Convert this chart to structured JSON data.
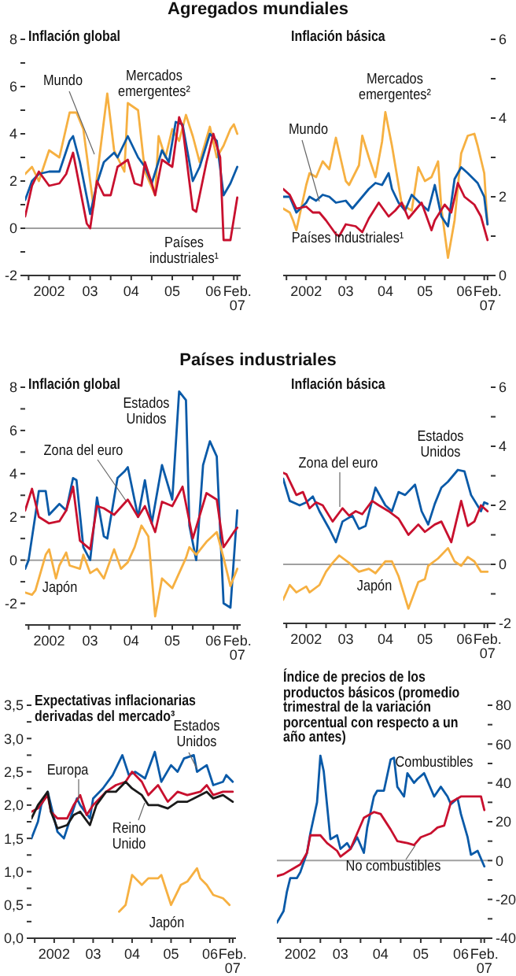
{
  "chart_data": [
    {
      "type": "line",
      "title": "Inflación global",
      "annotations": [
        "Agregados mundiales"
      ],
      "xlim": [
        "2001-12",
        "2007-03"
      ],
      "xticks": [
        {
          "value": "2002-01",
          "label": null
        },
        {
          "value": "2002-07",
          "label": "2002"
        },
        {
          "value": "2003-01",
          "label": null
        },
        {
          "value": "2003-07",
          "label": "03"
        },
        {
          "value": "2004-01",
          "label": null
        },
        {
          "value": "2004-07",
          "label": "04"
        },
        {
          "value": "2005-01",
          "label": null
        },
        {
          "value": "2005-07",
          "label": "05"
        },
        {
          "value": "2006-01",
          "label": null
        },
        {
          "value": "2006-07",
          "label": "06"
        },
        {
          "value": "2007-01",
          "label": null
        },
        {
          "value": "2007-02",
          "label": "Feb. 07"
        }
      ],
      "ylim": [
        -2,
        8
      ],
      "yticks": [
        -2,
        {
          "value": -1,
          "label": null
        },
        0,
        {
          "value": 1,
          "label": null
        },
        2,
        {
          "value": 3,
          "label": null
        },
        4,
        {
          "value": 5,
          "label": null
        },
        6,
        {
          "value": 7,
          "label": null
        },
        8
      ],
      "ref_lines": [
        {
          "axis": "y",
          "value": 0,
          "color": "#a0a0a0"
        }
      ],
      "series": [
        {
          "name": "Mercados emergentes²",
          "color": "#f6b041",
          "x": [
            "2001-12",
            "2002-02",
            "2002-04",
            "2002-07",
            "2002-10",
            "2003-01",
            "2003-03",
            "2003-05",
            "2003-08",
            "2003-09",
            "2003-12",
            "2004-02",
            "2004-05",
            "2004-06",
            "2004-09",
            "2004-11",
            "2005-02",
            "2005-03",
            "2005-05",
            "2005-07",
            "2005-09",
            "2005-11",
            "2006-01",
            "2006-03",
            "2006-06",
            "2006-08",
            "2006-10",
            "2006-12",
            "2007-01",
            "2007-02"
          ],
          "values": [
            2.3,
            2.6,
            2.0,
            3.3,
            3.0,
            4.9,
            4.9,
            4.2,
            0.9,
            2.2,
            5.7,
            3.3,
            2.4,
            5.3,
            5.0,
            2.4,
            1.4,
            3.9,
            3.0,
            4.2,
            3.7,
            4.8,
            3.9,
            2.8,
            4.3,
            3.0,
            3.5,
            4.2,
            4.4,
            4.0
          ]
        },
        {
          "name": "Mundo",
          "color": "#0a5aa8",
          "x": [
            "2001-12",
            "2002-02",
            "2002-04",
            "2002-07",
            "2002-10",
            "2003-01",
            "2003-02",
            "2003-04",
            "2003-07",
            "2003-09",
            "2003-11",
            "2004-02",
            "2004-03",
            "2004-06",
            "2004-09",
            "2004-11",
            "2005-01",
            "2005-04",
            "2005-06",
            "2005-08",
            "2005-10",
            "2006-01",
            "2006-03",
            "2006-06",
            "2006-08",
            "2006-10",
            "2006-12",
            "2007-02"
          ],
          "values": [
            1.2,
            2.0,
            2.3,
            2.4,
            2.4,
            3.7,
            3.9,
            2.8,
            0.6,
            1.9,
            2.8,
            3.2,
            3.0,
            3.9,
            3.0,
            2.6,
            1.9,
            3.3,
            2.8,
            4.5,
            4.4,
            2.0,
            2.6,
            4.0,
            3.7,
            1.4,
            1.9,
            2.6
          ]
        },
        {
          "name": "Países industriales¹",
          "color": "#c8102e",
          "x": [
            "2001-12",
            "2002-02",
            "2002-04",
            "2002-07",
            "2002-10",
            "2002-12",
            "2003-02",
            "2003-04",
            "2003-06",
            "2003-07",
            "2003-09",
            "2003-11",
            "2004-01",
            "2004-03",
            "2004-06",
            "2004-08",
            "2004-10",
            "2004-11",
            "2005-01",
            "2005-02",
            "2005-04",
            "2005-07",
            "2005-09",
            "2005-10",
            "2006-01",
            "2006-02",
            "2006-05",
            "2006-07",
            "2006-09",
            "2006-10",
            "2006-12",
            "2007-02"
          ],
          "values": [
            0.5,
            1.8,
            2.4,
            1.8,
            1.9,
            2.3,
            3.2,
            1.7,
            0.2,
            0,
            2.0,
            1.4,
            1.4,
            2.6,
            2.9,
            1.9,
            1.8,
            2.8,
            1.9,
            1.4,
            2.9,
            2.6,
            4.7,
            4.3,
            0.8,
            0.7,
            2.8,
            4.0,
            3.0,
            -0.5,
            -0.5,
            1.3
          ]
        }
      ]
    },
    {
      "type": "line",
      "title": "Inflación básica",
      "xlim": [
        "2001-12",
        "2007-03"
      ],
      "xticks": [
        {
          "value": "2002-01",
          "label": null
        },
        {
          "value": "2002-07",
          "label": "2002"
        },
        {
          "value": "2003-01",
          "label": null
        },
        {
          "value": "2003-07",
          "label": "03"
        },
        {
          "value": "2004-01",
          "label": null
        },
        {
          "value": "2004-07",
          "label": "04"
        },
        {
          "value": "2005-01",
          "label": null
        },
        {
          "value": "2005-07",
          "label": "05"
        },
        {
          "value": "2006-01",
          "label": null
        },
        {
          "value": "2006-07",
          "label": "06"
        },
        {
          "value": "2007-01",
          "label": null
        },
        {
          "value": "2007-02",
          "label": "Feb. 07"
        }
      ],
      "ylim": [
        0,
        6
      ],
      "yticks": [
        0,
        {
          "value": 1,
          "label": null
        },
        2,
        {
          "value": 3,
          "label": null
        },
        4,
        {
          "value": 5,
          "label": null
        },
        6
      ],
      "series": [
        {
          "name": "Mercados emergentes²",
          "color": "#f6b041",
          "x": [
            "2001-12",
            "2002-02",
            "2002-03",
            "2002-04",
            "2002-07",
            "2002-08",
            "2002-10",
            "2002-12",
            "2003-02",
            "2003-04",
            "2003-07",
            "2003-08",
            "2003-11",
            "2003-12",
            "2004-02",
            "2004-04",
            "2004-06",
            "2004-07",
            "2004-09",
            "2004-11",
            "2004-12",
            "2005-03",
            "2005-05",
            "2005-07",
            "2005-09",
            "2005-11",
            "2005-12",
            "2006-02",
            "2006-04",
            "2006-06",
            "2006-08",
            "2006-10",
            "2006-11",
            "2007-01",
            "2007-02"
          ],
          "values": [
            1.7,
            1.6,
            1.4,
            1.15,
            2.3,
            2.6,
            2.5,
            2.9,
            2.7,
            3.5,
            2.4,
            2.3,
            2.8,
            3.55,
            3.0,
            2.5,
            3.4,
            4.15,
            3.3,
            2.3,
            1.8,
            1.65,
            2.75,
            2.4,
            2.5,
            2.9,
            1.7,
            0.45,
            1.4,
            3.1,
            3.55,
            3.6,
            3.3,
            2.6,
            1.3
          ]
        },
        {
          "name": "Mundo",
          "color": "#0a5aa8",
          "x": [
            "2001-12",
            "2002-02",
            "2002-04",
            "2002-07",
            "2002-08",
            "2002-10",
            "2002-12",
            "2003-02",
            "2003-04",
            "2003-07",
            "2003-09",
            "2003-11",
            "2004-02",
            "2004-04",
            "2004-06",
            "2004-08",
            "2004-09",
            "2004-11",
            "2005-01",
            "2005-03",
            "2005-06",
            "2005-08",
            "2005-10",
            "2005-12",
            "2006-02",
            "2006-04",
            "2006-06",
            "2006-08",
            "2006-11",
            "2007-01",
            "2007-02"
          ],
          "values": [
            2.0,
            2.0,
            1.6,
            1.85,
            2.0,
            1.9,
            2.05,
            2.0,
            1.85,
            1.9,
            1.7,
            1.9,
            2.2,
            2.35,
            2.3,
            2.6,
            2.2,
            1.85,
            1.65,
            2.05,
            1.8,
            1.65,
            2.3,
            1.5,
            1.25,
            2.45,
            2.75,
            2.6,
            2.35,
            2.0,
            1.3
          ]
        },
        {
          "name": "Países industriales¹",
          "color": "#c8102e",
          "x": [
            "2001-12",
            "2002-02",
            "2002-04",
            "2002-07",
            "2002-09",
            "2002-11",
            "2003-01",
            "2003-04",
            "2003-05",
            "2003-07",
            "2003-10",
            "2003-12",
            "2004-02",
            "2004-05",
            "2004-08",
            "2004-10",
            "2004-12",
            "2005-02",
            "2005-04",
            "2005-06",
            "2005-09",
            "2005-10",
            "2006-01",
            "2006-03",
            "2006-05",
            "2006-07",
            "2006-10",
            "2006-12",
            "2007-02"
          ],
          "values": [
            2.2,
            2.05,
            1.7,
            1.75,
            1.6,
            1.6,
            1.4,
            1.05,
            1.0,
            1.3,
            1.25,
            1.1,
            1.45,
            1.85,
            1.5,
            1.65,
            1.85,
            1.45,
            1.65,
            1.85,
            1.15,
            1.4,
            1.8,
            1.6,
            2.35,
            2.0,
            1.8,
            1.5,
            0.9
          ]
        }
      ]
    },
    {
      "type": "line",
      "title": "Inflación global",
      "annotations": [
        "Países industriales"
      ],
      "xlim": [
        "2001-12",
        "2007-03"
      ],
      "xticks": [
        {
          "value": "2002-01",
          "label": null
        },
        {
          "value": "2002-07",
          "label": "2002"
        },
        {
          "value": "2003-01",
          "label": null
        },
        {
          "value": "2003-07",
          "label": "03"
        },
        {
          "value": "2004-01",
          "label": null
        },
        {
          "value": "2004-07",
          "label": "04"
        },
        {
          "value": "2005-01",
          "label": null
        },
        {
          "value": "2005-07",
          "label": "05"
        },
        {
          "value": "2006-01",
          "label": null
        },
        {
          "value": "2006-07",
          "label": "06"
        },
        {
          "value": "2007-01",
          "label": null
        },
        {
          "value": "2007-02",
          "label": "Feb. 07"
        }
      ],
      "ylim": [
        -3,
        8
      ],
      "yticks": [
        -2,
        {
          "value": -1,
          "label": null
        },
        0,
        {
          "value": 1,
          "label": null
        },
        2,
        {
          "value": 3,
          "label": null
        },
        4,
        {
          "value": 5,
          "label": null
        },
        6,
        {
          "value": 7,
          "label": null
        },
        8
      ],
      "ref_lines": [
        {
          "axis": "y",
          "value": 0,
          "color": "#a0a0a0"
        }
      ],
      "series": [
        {
          "name": "Estados Unidos",
          "color": "#0a5aa8",
          "x": [
            "2001-12",
            "2002-01",
            "2002-03",
            "2002-04",
            "2002-06",
            "2002-07",
            "2002-10",
            "2002-12",
            "2003-02",
            "2003-03",
            "2003-05",
            "2003-07",
            "2003-09",
            "2003-11",
            "2003-12",
            "2004-03",
            "2004-05",
            "2004-06",
            "2004-09",
            "2004-11",
            "2005-01",
            "2005-04",
            "2005-07",
            "2005-09",
            "2005-11",
            "2005-12",
            "2006-02",
            "2006-04",
            "2006-06",
            "2006-08",
            "2006-10",
            "2006-12",
            "2007-02"
          ],
          "values": [
            -0.4,
            0,
            2.1,
            3.2,
            3.2,
            2.1,
            2.6,
            2.3,
            3.8,
            3.7,
            0.6,
            0,
            2.9,
            1.1,
            1.0,
            3.8,
            4.1,
            4.3,
            2.0,
            3.7,
            1.7,
            4.4,
            2.8,
            7.8,
            7.4,
            1.6,
            0,
            4.4,
            5.5,
            4.8,
            -2.0,
            -2.2,
            2.3
          ]
        },
        {
          "name": "Zona del euro",
          "color": "#c8102e",
          "x": [
            "2001-12",
            "2002-02",
            "2002-04",
            "2002-07",
            "2002-10",
            "2002-12",
            "2003-02",
            "2003-04",
            "2003-07",
            "2003-09",
            "2003-11",
            "2004-02",
            "2004-06",
            "2004-09",
            "2004-11",
            "2005-02",
            "2005-04",
            "2005-07",
            "2005-10",
            "2006-01",
            "2006-05",
            "2006-08",
            "2006-10",
            "2007-01",
            "2007-02"
          ],
          "values": [
            2.3,
            3.3,
            2.0,
            1.7,
            1.8,
            2.3,
            3.4,
            0.9,
            0.5,
            2.5,
            2.4,
            2.1,
            2.8,
            2.0,
            2.5,
            1.3,
            2.7,
            2.5,
            3.4,
            1.0,
            3.1,
            2.8,
            0.6,
            1.3,
            1.5
          ]
        },
        {
          "name": "Japón",
          "color": "#f6b041",
          "x": [
            "2001-12",
            "2002-02",
            "2002-03",
            "2002-06",
            "2002-07",
            "2002-09",
            "2002-10",
            "2002-12",
            "2003-01",
            "2003-04",
            "2003-05",
            "2003-07",
            "2003-09",
            "2003-11",
            "2004-02",
            "2004-04",
            "2004-06",
            "2004-08",
            "2004-10",
            "2004-12",
            "2005-02",
            "2005-04",
            "2005-07",
            "2005-09",
            "2005-11",
            "2005-12",
            "2006-02",
            "2006-05",
            "2006-08",
            "2006-10",
            "2006-12",
            "2007-02"
          ],
          "values": [
            -1.5,
            -1.6,
            -1.4,
            0.25,
            0.5,
            -0.85,
            -0.25,
            0.35,
            -0.25,
            -0.4,
            0.25,
            -0.6,
            -0.4,
            -0.85,
            0.5,
            -0.4,
            -0.1,
            0.6,
            1.6,
            1.1,
            -2.6,
            -0.85,
            -1.3,
            -0.6,
            0.1,
            0.6,
            0.25,
            0.85,
            1.3,
            0.1,
            -1.2,
            -0.4
          ]
        }
      ]
    },
    {
      "type": "line",
      "title": "Inflación básica",
      "xlim": [
        "2001-12",
        "2007-03"
      ],
      "xticks": [
        {
          "value": "2002-01",
          "label": null
        },
        {
          "value": "2002-07",
          "label": "2002"
        },
        {
          "value": "2003-01",
          "label": null
        },
        {
          "value": "2003-07",
          "label": "03"
        },
        {
          "value": "2004-01",
          "label": null
        },
        {
          "value": "2004-07",
          "label": "04"
        },
        {
          "value": "2005-01",
          "label": null
        },
        {
          "value": "2005-07",
          "label": "05"
        },
        {
          "value": "2006-01",
          "label": null
        },
        {
          "value": "2006-07",
          "label": "06"
        },
        {
          "value": "2007-01",
          "label": null
        },
        {
          "value": "2007-02",
          "label": "Feb. 07"
        }
      ],
      "ylim": [
        -2,
        6
      ],
      "yticks": [
        -2,
        {
          "value": -1,
          "label": null
        },
        0,
        {
          "value": 1,
          "label": null
        },
        2,
        {
          "value": 3,
          "label": null
        },
        4,
        {
          "value": 5,
          "label": null
        },
        6
      ],
      "ref_lines": [
        {
          "axis": "y",
          "value": 0,
          "color": "#a0a0a0"
        }
      ],
      "series": [
        {
          "name": "Estados Unidos",
          "color": "#0a5aa8",
          "x": [
            "2001-12",
            "2002-02",
            "2002-05",
            "2002-07",
            "2002-09",
            "2002-11",
            "2003-02",
            "2003-04",
            "2003-06",
            "2003-09",
            "2003-11",
            "2004-01",
            "2004-04",
            "2004-07",
            "2004-09",
            "2004-11",
            "2005-01",
            "2005-04",
            "2005-06",
            "2005-08",
            "2005-10",
            "2005-12",
            "2006-02",
            "2006-05",
            "2006-07",
            "2006-09",
            "2006-12",
            "2007-01",
            "2007-02"
          ],
          "values": [
            2.9,
            2.15,
            2.0,
            2.1,
            2.3,
            1.8,
            1.2,
            0.75,
            1.45,
            1.65,
            1.2,
            1.3,
            2.6,
            2.0,
            1.8,
            2.45,
            2.35,
            2.7,
            1.8,
            1.35,
            2.05,
            2.6,
            2.8,
            3.2,
            3.15,
            2.35,
            1.8,
            2.1,
            2.05
          ]
        },
        {
          "name": "Zona del euro",
          "color": "#c8102e",
          "x": [
            "2001-12",
            "2002-01",
            "2002-04",
            "2002-06",
            "2002-08",
            "2002-10",
            "2002-12",
            "2003-03",
            "2003-06",
            "2003-08",
            "2003-10",
            "2003-12",
            "2004-03",
            "2004-05",
            "2004-08",
            "2004-11",
            "2005-02",
            "2005-05",
            "2005-07",
            "2005-10",
            "2005-12",
            "2006-03",
            "2006-06",
            "2006-08",
            "2006-10",
            "2006-12",
            "2007-02"
          ],
          "values": [
            3.1,
            3.05,
            2.35,
            2.45,
            1.9,
            2.1,
            2.0,
            1.45,
            1.9,
            1.65,
            1.8,
            1.7,
            2.15,
            2.0,
            1.8,
            1.55,
            1.0,
            1.35,
            1.1,
            1.35,
            1.45,
            0.75,
            2.15,
            1.3,
            1.45,
            2.0,
            1.8
          ]
        },
        {
          "name": "Japón",
          "color": "#f6b041",
          "x": [
            "2001-12",
            "2002-02",
            "2002-04",
            "2002-07",
            "2002-08",
            "2002-11",
            "2003-01",
            "2003-03",
            "2003-05",
            "2003-08",
            "2003-11",
            "2004-02",
            "2004-04",
            "2004-07",
            "2004-09",
            "2004-11",
            "2005-02",
            "2005-05",
            "2005-07",
            "2005-08",
            "2005-11",
            "2006-02",
            "2006-04",
            "2006-06",
            "2006-08",
            "2006-10",
            "2006-12",
            "2007-02"
          ],
          "values": [
            -1.2,
            -0.7,
            -0.95,
            -0.75,
            -0.95,
            -0.7,
            -0.25,
            0.05,
            0.3,
            0.05,
            -0.25,
            -0.15,
            -0.3,
            0.1,
            0.1,
            -0.4,
            -1.5,
            -0.6,
            -0.5,
            -0.05,
            0.2,
            0.55,
            0.1,
            -0.05,
            0.25,
            0.1,
            -0.25,
            -0.25
          ]
        }
      ]
    },
    {
      "type": "line",
      "title": "Expectativas inflacionarias derivadas del mercado³",
      "xlim": [
        "2001-12",
        "2007-03"
      ],
      "xticks": [
        {
          "value": "2002-01",
          "label": null
        },
        {
          "value": "2002-07",
          "label": "2002"
        },
        {
          "value": "2003-01",
          "label": null
        },
        {
          "value": "2003-07",
          "label": "03"
        },
        {
          "value": "2004-01",
          "label": null
        },
        {
          "value": "2004-07",
          "label": "04"
        },
        {
          "value": "2005-01",
          "label": null
        },
        {
          "value": "2005-07",
          "label": "05"
        },
        {
          "value": "2006-01",
          "label": null
        },
        {
          "value": "2006-07",
          "label": "06"
        },
        {
          "value": "2007-01",
          "label": null
        },
        {
          "value": "2007-02",
          "label": "Feb. 07"
        }
      ],
      "ylim": [
        0,
        3.5
      ],
      "yticks": [
        {
          "value": 0,
          "label": "0,0"
        },
        {
          "value": 0.25,
          "label": null
        },
        {
          "value": 0.5,
          "label": "0,5"
        },
        {
          "value": 0.75,
          "label": null
        },
        {
          "value": 1,
          "label": "1,0"
        },
        {
          "value": 1.25,
          "label": null
        },
        {
          "value": 1.5,
          "label": "1,5"
        },
        {
          "value": 1.75,
          "label": null
        },
        {
          "value": 2,
          "label": "2,0"
        },
        {
          "value": 2.25,
          "label": null
        },
        {
          "value": 2.5,
          "label": "2,5"
        },
        {
          "value": 2.75,
          "label": null
        },
        {
          "value": 3,
          "label": "3,0"
        },
        {
          "value": 3.25,
          "label": null
        },
        {
          "value": 3.5,
          "label": "3,5"
        }
      ],
      "series": [
        {
          "name": "Estados Unidos",
          "color": "#0a5aa8",
          "x": [
            "2001-12",
            "2002-02",
            "2002-03",
            "2002-05",
            "2002-06",
            "2002-08",
            "2002-10",
            "2002-12",
            "2003-02",
            "2003-03",
            "2003-06",
            "2003-07",
            "2003-10",
            "2004-01",
            "2004-04",
            "2004-06",
            "2004-08",
            "2004-11",
            "2005-02",
            "2005-04",
            "2005-07",
            "2005-09",
            "2005-11",
            "2006-02",
            "2006-03",
            "2006-06",
            "2006-08",
            "2006-11",
            "2006-12",
            "2007-02"
          ],
          "values": [
            1.5,
            1.75,
            2.0,
            2.2,
            2.0,
            1.6,
            1.5,
            1.8,
            2.1,
            2.0,
            1.8,
            2.1,
            2.25,
            2.45,
            2.75,
            2.45,
            2.5,
            2.4,
            2.8,
            2.35,
            2.6,
            2.5,
            2.7,
            2.75,
            2.5,
            2.6,
            2.3,
            2.35,
            2.45,
            2.35
          ]
        },
        {
          "name": "Europa",
          "color": "#c8102e",
          "x": [
            "2001-12",
            "2002-02",
            "2002-05",
            "2002-06",
            "2002-08",
            "2002-11",
            "2003-01",
            "2003-03",
            "2003-05",
            "2003-07",
            "2003-11",
            "2004-02",
            "2004-05",
            "2004-07",
            "2004-10",
            "2004-12",
            "2005-03",
            "2005-06",
            "2005-09",
            "2005-12",
            "2006-04",
            "2006-06",
            "2006-08",
            "2006-11",
            "2007-02"
          ],
          "values": [
            1.9,
            1.95,
            2.15,
            1.9,
            1.8,
            1.8,
            2.0,
            2.15,
            1.85,
            2.0,
            2.2,
            2.3,
            2.35,
            2.5,
            2.35,
            2.15,
            2.3,
            2.05,
            2.2,
            2.15,
            2.2,
            2.3,
            2.15,
            2.2,
            2.2
          ]
        },
        {
          "name": "Reino Unido",
          "color": "#1a1a1a",
          "x": [
            "2001-12",
            "2002-02",
            "2002-05",
            "2002-06",
            "2002-08",
            "2002-11",
            "2003-01",
            "2003-03",
            "2003-06",
            "2003-08",
            "2003-11",
            "2004-02",
            "2004-05",
            "2004-07",
            "2004-10",
            "2004-12",
            "2005-03",
            "2005-06",
            "2005-09",
            "2005-12",
            "2006-04",
            "2006-06",
            "2006-08",
            "2006-11",
            "2007-02"
          ],
          "values": [
            1.8,
            2.0,
            2.2,
            1.9,
            1.65,
            1.7,
            1.85,
            1.9,
            1.7,
            2.0,
            2.2,
            2.2,
            2.35,
            2.25,
            2.15,
            2.0,
            2.0,
            1.95,
            2.05,
            2.05,
            2.15,
            2.2,
            2.1,
            2.15,
            2.05
          ]
        },
        {
          "name": "Japón",
          "color": "#f6b041",
          "x": [
            "2004-03",
            "2004-05",
            "2004-07",
            "2004-08",
            "2004-10",
            "2004-12",
            "2005-03",
            "2005-04",
            "2005-06",
            "2005-07",
            "2005-10",
            "2005-12",
            "2006-03",
            "2006-04",
            "2006-06",
            "2006-08",
            "2006-11",
            "2007-01"
          ],
          "values": [
            0.4,
            0.5,
            0.95,
            0.9,
            0.8,
            0.9,
            0.9,
            0.95,
            0.65,
            0.5,
            0.8,
            0.85,
            1.05,
            0.9,
            0.8,
            0.65,
            0.6,
            0.5
          ]
        }
      ]
    },
    {
      "type": "line",
      "title": "Índice de precios de los productos básicos (promedio trimestral de la variación porcentual con respecto a un año antes)",
      "xlim": [
        "2001-12",
        "2007-03"
      ],
      "xticks": [
        {
          "value": "2002-01",
          "label": null
        },
        {
          "value": "2002-07",
          "label": "2002"
        },
        {
          "value": "2003-01",
          "label": null
        },
        {
          "value": "2003-07",
          "label": "03"
        },
        {
          "value": "2004-01",
          "label": null
        },
        {
          "value": "2004-07",
          "label": "04"
        },
        {
          "value": "2005-01",
          "label": null
        },
        {
          "value": "2005-07",
          "label": "05"
        },
        {
          "value": "2006-01",
          "label": null
        },
        {
          "value": "2006-07",
          "label": "06"
        },
        {
          "value": "2007-01",
          "label": null
        },
        {
          "value": "2007-02",
          "label": "Feb. 07"
        }
      ],
      "ylim": [
        -40,
        80
      ],
      "yticks": [
        -40,
        {
          "value": -30,
          "label": null
        },
        -20,
        {
          "value": -10,
          "label": null
        },
        0,
        {
          "value": 10,
          "label": null
        },
        20,
        {
          "value": 30,
          "label": null
        },
        40,
        {
          "value": 50,
          "label": null
        },
        60,
        {
          "value": 70,
          "label": null
        },
        80
      ],
      "ref_lines": [
        {
          "axis": "y",
          "value": 0,
          "color": "#a0a0a0"
        }
      ],
      "series": [
        {
          "name": "Combustibles",
          "color": "#0a5aa8",
          "x": [
            "2001-12",
            "2002-02",
            "2002-03",
            "2002-04",
            "2002-06",
            "2002-07",
            "2002-09",
            "2002-10",
            "2002-12",
            "2003-01",
            "2003-02",
            "2003-04",
            "2003-06",
            "2003-07",
            "2003-09",
            "2003-10",
            "2003-12",
            "2004-02",
            "2004-03",
            "2004-05",
            "2004-06",
            "2004-08",
            "2004-10",
            "2004-11",
            "2004-12",
            "2005-02",
            "2005-03",
            "2005-05",
            "2005-06",
            "2005-08",
            "2005-10",
            "2005-11",
            "2006-01",
            "2006-03",
            "2006-04",
            "2006-06",
            "2006-07",
            "2006-09",
            "2006-10",
            "2006-12",
            "2007-02"
          ],
          "values": [
            -32,
            -26,
            -16,
            -9,
            -9,
            -6,
            4,
            14,
            30,
            54,
            46,
            11,
            13,
            6,
            9,
            6,
            12,
            4,
            17,
            33,
            36,
            36,
            52,
            53,
            38,
            33,
            45,
            40,
            42,
            45,
            37,
            33,
            38,
            33,
            29,
            32,
            24,
            12,
            3,
            5,
            -3
          ]
        },
        {
          "name": "No combustibles",
          "color": "#c8102e",
          "x": [
            "2001-12",
            "2002-02",
            "2002-05",
            "2002-07",
            "2002-09",
            "2002-10",
            "2003-01",
            "2003-03",
            "2003-06",
            "2003-07",
            "2003-10",
            "2003-12",
            "2004-02",
            "2004-05",
            "2004-07",
            "2004-10",
            "2004-12",
            "2005-03",
            "2005-05",
            "2005-07",
            "2005-10",
            "2005-12",
            "2006-02",
            "2006-04",
            "2006-07",
            "2006-09",
            "2006-11",
            "2007-01",
            "2007-02"
          ],
          "values": [
            -8,
            -7,
            -4,
            -2,
            4,
            13,
            13,
            9,
            5,
            2,
            6,
            14,
            22,
            25,
            24,
            16,
            10,
            9,
            8,
            12,
            14,
            17,
            18,
            30,
            33,
            33,
            33,
            33,
            26
          ]
        }
      ]
    }
  ]
}
